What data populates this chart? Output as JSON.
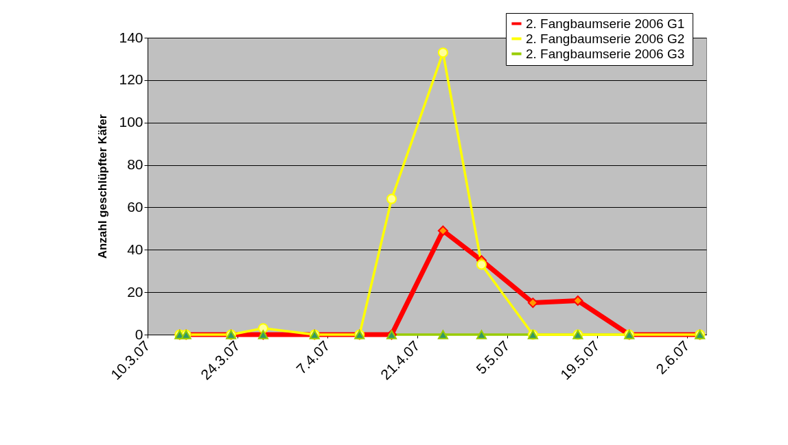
{
  "chart_data": {
    "type": "line",
    "ylabel": "Anzahl geschlüpfter Käfer",
    "x": [
      "2007-03-15",
      "2007-03-16",
      "2007-03-23",
      "2007-03-28",
      "2007-04-05",
      "2007-04-12",
      "2007-04-17",
      "2007-04-25",
      "2007-05-01",
      "2007-05-09",
      "2007-05-16",
      "2007-05-24",
      "2007-06-04"
    ],
    "series": [
      {
        "name": "2. Fangbaumserie 2006  G1",
        "color": "#ff0000",
        "marker": "diamond",
        "values": [
          0,
          0,
          0,
          0,
          0,
          0,
          0,
          49,
          35,
          15,
          16,
          0,
          0
        ]
      },
      {
        "name": "2. Fangbaumserie 2006  G2",
        "color": "#ffff00",
        "marker": "circle",
        "values": [
          0,
          0,
          0,
          3,
          0,
          0,
          64,
          133,
          33,
          0,
          0,
          0,
          0
        ]
      },
      {
        "name": "2. Fangbaumserie 2006  G3",
        "color": "#99cc00",
        "marker": "triangle",
        "values": [
          0,
          0,
          0,
          0,
          0,
          0,
          0,
          0,
          0,
          0,
          0,
          0,
          0
        ]
      }
    ],
    "xlim": [
      "2007-03-10",
      "2007-06-05"
    ],
    "xticks": [
      {
        "value": "2007-03-10",
        "label": "10.3.07"
      },
      {
        "value": "2007-03-24",
        "label": "24.3.07"
      },
      {
        "value": "2007-04-07",
        "label": "7.4.07"
      },
      {
        "value": "2007-04-21",
        "label": "21.4.07"
      },
      {
        "value": "2007-05-05",
        "label": "5.5.07"
      },
      {
        "value": "2007-05-19",
        "label": "19.5.07"
      },
      {
        "value": "2007-06-02",
        "label": "2.6.07"
      }
    ],
    "ylim": [
      0,
      140
    ],
    "yticks": [
      0,
      20,
      40,
      60,
      80,
      100,
      120,
      140
    ],
    "grid": "y",
    "legend": "top right",
    "line_style": "solid"
  }
}
